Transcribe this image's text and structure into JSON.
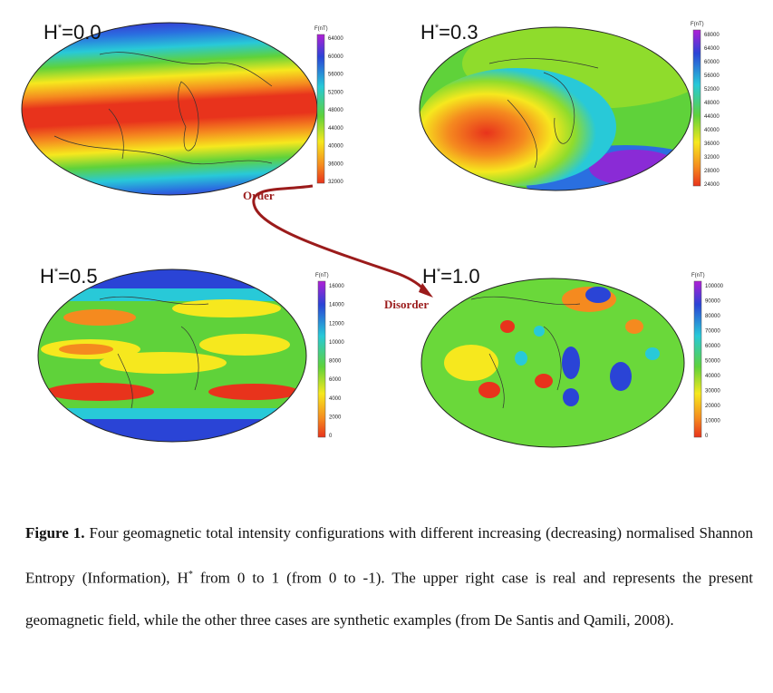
{
  "panels": [
    {
      "label_base": "H",
      "label_sup": "*",
      "label_val": "=0.0",
      "cb_unit": "F(nT)",
      "cb_ticks": [
        "64000",
        "60000",
        "56000",
        "52000",
        "48000",
        "44000",
        "40000",
        "36000",
        "32000"
      ]
    },
    {
      "label_base": "H",
      "label_sup": "*",
      "label_val": "=0.3",
      "cb_unit": "F(nT)",
      "cb_ticks": [
        "68000",
        "64000",
        "60000",
        "56000",
        "52000",
        "48000",
        "44000",
        "40000",
        "36000",
        "32000",
        "28000",
        "24000"
      ]
    },
    {
      "label_base": "H",
      "label_sup": "*",
      "label_val": "=0.5",
      "cb_unit": "F(nT)",
      "cb_ticks": [
        "16000",
        "14000",
        "12000",
        "10000",
        "8000",
        "6000",
        "4000",
        "2000",
        "0"
      ]
    },
    {
      "label_base": "H",
      "label_sup": "*",
      "label_val": "=1.0",
      "cb_unit": "F(nT)",
      "cb_ticks": [
        "100000",
        "90000",
        "80000",
        "70000",
        "60000",
        "50000",
        "40000",
        "30000",
        "20000",
        "10000",
        "0"
      ]
    }
  ],
  "arrow": {
    "order_label": "Order",
    "disorder_label": "Disorder",
    "color": "#9b1b1b"
  },
  "caption": {
    "figure_label": "Figure 1.",
    "text_before_sup": " Four geomagnetic total intensity configurations with different increasing (decreasing) normalised Shannon Entropy (Information), H",
    "sup": "*",
    "text_after_sup": " from 0 to 1 (from 0 to -1). The upper right case is real and represents the present geomagnetic field, while the other three cases are synthetic examples (from De Santis and Qamili, 2008)."
  },
  "colors": {
    "red": "#e8331c",
    "orange": "#f58a1f",
    "yellow": "#f6e81e",
    "green": "#5fd23a",
    "cyan": "#28c9d8",
    "blue": "#2a44d6",
    "purple": "#8a2bd6"
  }
}
